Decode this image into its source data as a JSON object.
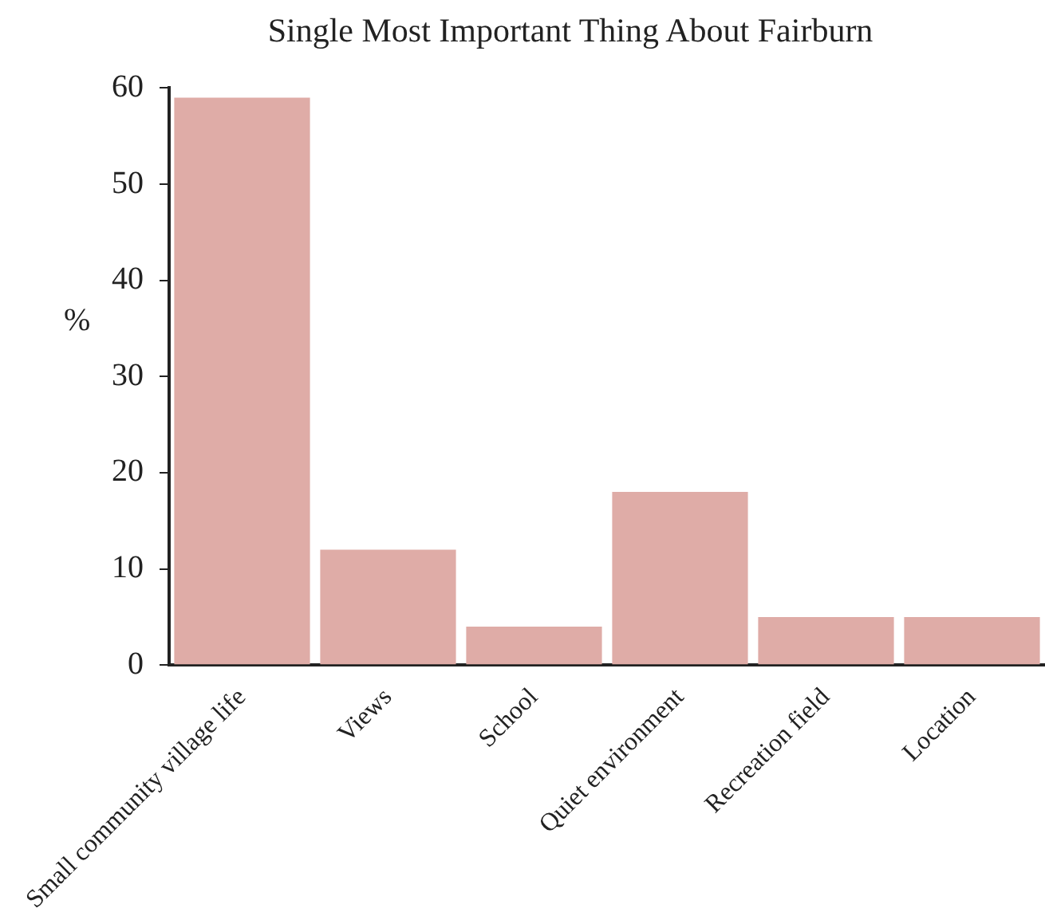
{
  "chart_data": {
    "type": "bar",
    "title": "Single Most Important Thing About Fairburn",
    "ylabel": "%",
    "categories": [
      "Small community village life",
      "Views",
      "School",
      "Quiet environment",
      "Recreation field",
      "Location"
    ],
    "values": [
      59,
      12,
      4,
      18,
      5,
      5
    ],
    "color": "#dfaca7",
    "ylim": [
      0,
      60
    ],
    "yticks": [
      0,
      10,
      20,
      30,
      40,
      50,
      60
    ],
    "grid": false
  }
}
